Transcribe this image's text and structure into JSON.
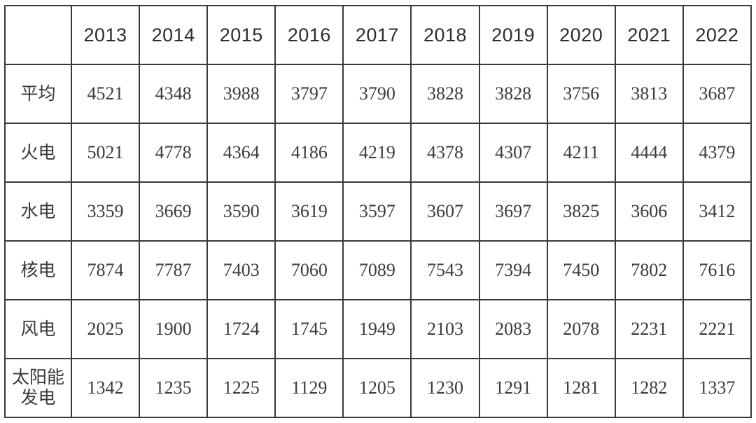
{
  "chart_data": {
    "type": "table",
    "columns": [
      "",
      "2013",
      "2014",
      "2015",
      "2016",
      "2017",
      "2018",
      "2019",
      "2020",
      "2021",
      "2022"
    ],
    "rows": [
      {
        "label": "平均",
        "values": [
          4521,
          4348,
          3988,
          3797,
          3790,
          3828,
          3828,
          3756,
          3813,
          3687
        ]
      },
      {
        "label": "火电",
        "values": [
          5021,
          4778,
          4364,
          4186,
          4219,
          4378,
          4307,
          4211,
          4444,
          4379
        ]
      },
      {
        "label": "水电",
        "values": [
          3359,
          3669,
          3590,
          3619,
          3597,
          3607,
          3697,
          3825,
          3606,
          3412
        ]
      },
      {
        "label": "核电",
        "values": [
          7874,
          7787,
          7403,
          7060,
          7089,
          7543,
          7394,
          7450,
          7802,
          7616
        ]
      },
      {
        "label": "风电",
        "values": [
          2025,
          1900,
          1724,
          1745,
          1949,
          2103,
          2083,
          2078,
          2231,
          2221
        ]
      },
      {
        "label": "太阳能\n发电",
        "values": [
          1342,
          1235,
          1225,
          1129,
          1205,
          1230,
          1291,
          1281,
          1282,
          1337
        ]
      }
    ],
    "title": "",
    "layout": {
      "grid": true,
      "header_row": "years",
      "first_column": "category_labels"
    }
  },
  "colors": {
    "background": "#ffffff",
    "border": "#3a3a3a",
    "header_text": "#2d2d2d",
    "cell_text": "#3b3b3b"
  }
}
